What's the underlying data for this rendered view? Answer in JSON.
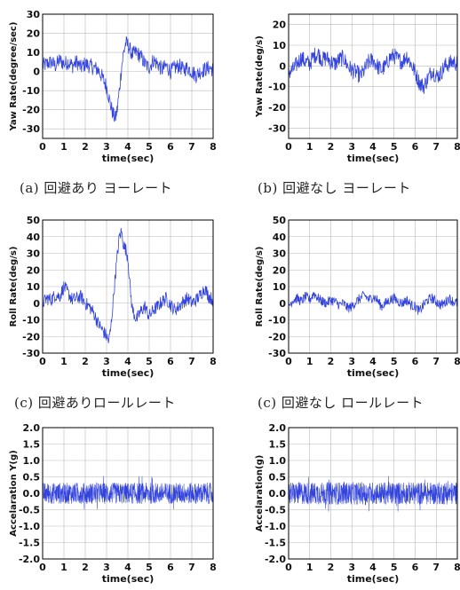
{
  "captions": [
    "(a) 回避あり ヨーレート",
    "(b) 回避なし ヨーレート",
    "(c) 回避ありロールレート",
    "(c) 回避なし ロールレート"
  ],
  "colors": {
    "line": "#3344dd",
    "grid": "#b8b8b8",
    "axis": "#000000"
  },
  "chart_data": [
    {
      "type": "line",
      "title": "",
      "xlabel": "time(sec)",
      "ylabel": "Yaw Rate(degree/sec)",
      "xlim": [
        0,
        8
      ],
      "ylim": [
        -35,
        30
      ],
      "xticks": [
        0,
        1,
        2,
        3,
        4,
        5,
        6,
        7,
        8
      ],
      "yticks": [
        30,
        20,
        10,
        0,
        -10,
        -20,
        -30
      ],
      "grid": true,
      "series": [
        {
          "x": [
            0.0,
            0.2,
            0.4,
            0.6,
            0.8,
            1.0,
            1.2,
            1.4,
            1.6,
            1.8,
            2.0,
            2.2,
            2.4,
            2.6,
            2.8,
            3.0,
            3.1,
            3.2,
            3.3,
            3.4,
            3.5,
            3.6,
            3.7,
            3.8,
            3.9,
            4.0,
            4.2,
            4.4,
            4.6,
            4.8,
            5.0,
            5.2,
            5.4,
            5.6,
            5.8,
            6.0,
            6.2,
            6.4,
            6.6,
            6.8,
            7.0,
            7.2,
            7.4,
            7.6,
            7.8,
            8.0
          ],
          "y": [
            3,
            4,
            5,
            3,
            6,
            4,
            5,
            3,
            5,
            2,
            4,
            3,
            2,
            1,
            -3,
            -8,
            -13,
            -18,
            -22,
            -25,
            -20,
            -10,
            2,
            10,
            15,
            14,
            9,
            10,
            8,
            4,
            2,
            6,
            4,
            1,
            3,
            0,
            2,
            3,
            1,
            2,
            0,
            -2,
            0,
            1,
            2,
            1
          ],
          "noise": 4
        }
      ]
    },
    {
      "type": "line",
      "title": "",
      "xlabel": "time(sec)",
      "ylabel": "Yaw Rate(deg/s)",
      "xlim": [
        0,
        8
      ],
      "ylim": [
        -35,
        25
      ],
      "xticks": [
        0,
        1,
        2,
        3,
        4,
        5,
        6,
        7,
        8
      ],
      "yticks": [
        20,
        10,
        0,
        -10,
        -20,
        -30
      ],
      "grid": true,
      "series": [
        {
          "x": [
            0.0,
            0.2,
            0.4,
            0.6,
            0.8,
            1.0,
            1.2,
            1.4,
            1.6,
            1.8,
            2.0,
            2.2,
            2.4,
            2.6,
            2.8,
            3.0,
            3.2,
            3.4,
            3.6,
            3.8,
            4.0,
            4.2,
            4.4,
            4.6,
            4.8,
            5.0,
            5.2,
            5.4,
            5.6,
            5.8,
            6.0,
            6.2,
            6.4,
            6.6,
            6.8,
            7.0,
            7.2,
            7.4,
            7.6,
            7.8,
            8.0
          ],
          "y": [
            -3,
            -2,
            1,
            4,
            2,
            1,
            5,
            6,
            3,
            4,
            2,
            1,
            3,
            4,
            0,
            -2,
            -3,
            -5,
            -2,
            2,
            3,
            0,
            -2,
            0,
            4,
            5,
            3,
            2,
            5,
            1,
            -3,
            -8,
            -10,
            -6,
            -2,
            -5,
            -4,
            0,
            1,
            2,
            1
          ],
          "noise": 4
        }
      ]
    },
    {
      "type": "line",
      "title": "",
      "xlabel": "time(sec)",
      "ylabel": "Roll Rate(deg/s)",
      "xlim": [
        0,
        8
      ],
      "ylim": [
        -30,
        50
      ],
      "xticks": [
        0,
        1,
        2,
        3,
        4,
        5,
        6,
        7,
        8
      ],
      "yticks": [
        50,
        40,
        30,
        20,
        10,
        0,
        -10,
        -20,
        -30
      ],
      "grid": true,
      "series": [
        {
          "x": [
            0.0,
            0.2,
            0.4,
            0.6,
            0.8,
            1.0,
            1.2,
            1.4,
            1.6,
            1.8,
            2.0,
            2.2,
            2.4,
            2.6,
            2.8,
            3.0,
            3.1,
            3.2,
            3.3,
            3.4,
            3.5,
            3.6,
            3.7,
            3.8,
            3.9,
            4.0,
            4.1,
            4.2,
            4.4,
            4.6,
            4.8,
            5.0,
            5.2,
            5.4,
            5.6,
            5.8,
            6.0,
            6.2,
            6.4,
            6.6,
            6.8,
            7.0,
            7.2,
            7.4,
            7.6,
            7.8,
            8.0
          ],
          "y": [
            0,
            3,
            2,
            5,
            4,
            10,
            6,
            2,
            3,
            4,
            0,
            -2,
            -6,
            -12,
            -16,
            -20,
            -23,
            -15,
            0,
            15,
            28,
            40,
            43,
            35,
            32,
            28,
            10,
            -3,
            -10,
            -5,
            -2,
            -8,
            -4,
            -2,
            1,
            3,
            -1,
            -4,
            -2,
            1,
            3,
            0,
            2,
            5,
            9,
            4,
            2
          ],
          "noise": 4
        }
      ]
    },
    {
      "type": "line",
      "title": "",
      "xlabel": "time(sec)",
      "ylabel": "Roll Rate(deg/s)",
      "xlim": [
        0,
        8
      ],
      "ylim": [
        -30,
        50
      ],
      "xticks": [
        0,
        1,
        2,
        3,
        4,
        5,
        6,
        7,
        8
      ],
      "yticks": [
        50,
        40,
        30,
        20,
        10,
        0,
        -10,
        -20,
        -30
      ],
      "grid": true,
      "series": [
        {
          "x": [
            0.0,
            0.2,
            0.4,
            0.6,
            0.8,
            1.0,
            1.2,
            1.4,
            1.6,
            1.8,
            2.0,
            2.2,
            2.4,
            2.6,
            2.8,
            3.0,
            3.2,
            3.4,
            3.6,
            3.8,
            4.0,
            4.2,
            4.4,
            4.6,
            4.8,
            5.0,
            5.2,
            5.4,
            5.6,
            5.8,
            6.0,
            6.2,
            6.4,
            6.6,
            6.8,
            7.0,
            7.2,
            7.4,
            7.6,
            7.8,
            8.0
          ],
          "y": [
            -2,
            2,
            3,
            1,
            4,
            2,
            6,
            3,
            1,
            0,
            2,
            1,
            -1,
            0,
            -3,
            -2,
            1,
            3,
            5,
            2,
            4,
            2,
            -2,
            0,
            2,
            3,
            1,
            0,
            2,
            -1,
            -2,
            -5,
            -1,
            2,
            3,
            1,
            -1,
            0,
            3,
            1,
            0
          ],
          "noise": 3
        }
      ]
    },
    {
      "type": "line",
      "title": "",
      "xlabel": "time(sec)",
      "ylabel": "Accelaration Y(g)",
      "xlim": [
        0,
        8
      ],
      "ylim": [
        -2.0,
        2.0
      ],
      "xticks": [
        0,
        1,
        2,
        3,
        4,
        5,
        6,
        7,
        8
      ],
      "yticks": [
        2.0,
        1.5,
        1.0,
        0.5,
        0.0,
        -0.5,
        -1.0,
        -1.5,
        -2.0
      ],
      "yfmt": 1,
      "grid": true,
      "series": [
        {
          "x": [
            0,
            8
          ],
          "y": [
            0,
            0
          ],
          "noise": 0.32,
          "dense": true
        }
      ]
    },
    {
      "type": "line",
      "title": "",
      "xlabel": "time(sec)",
      "ylabel": "Accelaration(g)",
      "xlim": [
        0,
        8
      ],
      "ylim": [
        -2.0,
        2.0
      ],
      "xticks": [
        0,
        1,
        2,
        3,
        4,
        5,
        6,
        7,
        8
      ],
      "yticks": [
        2.0,
        1.5,
        1.0,
        0.5,
        0.0,
        -0.5,
        -1.0,
        -1.5,
        -2.0
      ],
      "yfmt": 1,
      "grid": true,
      "series": [
        {
          "x": [
            0,
            8
          ],
          "y": [
            0,
            0
          ],
          "noise": 0.34,
          "dense": true
        }
      ]
    }
  ]
}
